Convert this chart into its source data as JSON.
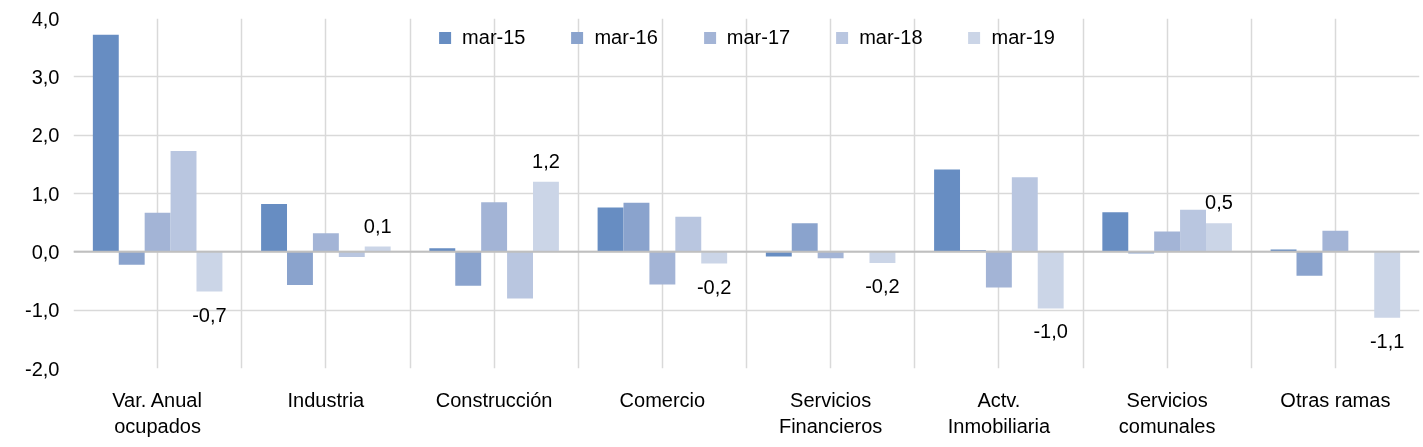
{
  "chart_data": {
    "type": "bar",
    "categories": [
      "Var. Anual ocupados",
      "Industria",
      "Construcción",
      "Comercio",
      "Servicios Financieros",
      "Actv. Inmobiliaria",
      "Servicios comunales",
      "Otras ramas"
    ],
    "series": [
      {
        "name": "mar-15",
        "color": "#678dc2",
        "values": [
          3.72,
          0.82,
          0.06,
          0.76,
          -0.08,
          1.41,
          0.68,
          0.04
        ]
      },
      {
        "name": "mar-16",
        "color": "#8aa3cd",
        "values": [
          -0.22,
          -0.57,
          -0.58,
          0.84,
          0.49,
          0.03,
          -0.03,
          -0.41
        ]
      },
      {
        "name": "mar-17",
        "color": "#a3b4d6",
        "values": [
          0.67,
          0.32,
          0.85,
          -0.56,
          -0.11,
          -0.61,
          0.35,
          0.36
        ]
      },
      {
        "name": "mar-18",
        "color": "#b9c6e0",
        "values": [
          1.73,
          -0.09,
          -0.8,
          0.6,
          0.01,
          1.28,
          0.72,
          0.0
        ]
      },
      {
        "name": "mar-19",
        "color": "#cbd5e7",
        "values": [
          -0.68,
          0.09,
          1.2,
          -0.2,
          -0.19,
          -0.97,
          0.49,
          -1.13
        ],
        "value_labels": [
          "-0,7",
          "0,1",
          "1,2",
          "-0,2",
          "-0,2",
          "-1,0",
          "0,5",
          "-1,1"
        ]
      }
    ],
    "ylim": [
      -2,
      4
    ],
    "yticks": [
      {
        "value": -2,
        "label": "-2,0"
      },
      {
        "value": -1,
        "label": "-1,0"
      },
      {
        "value": 0,
        "label": "0,0"
      },
      {
        "value": 1,
        "label": "1,0"
      },
      {
        "value": 2,
        "label": "2,0"
      },
      {
        "value": 3,
        "label": "3,0"
      },
      {
        "value": 4,
        "label": "4,0"
      }
    ],
    "grid": true,
    "legend": "top"
  }
}
